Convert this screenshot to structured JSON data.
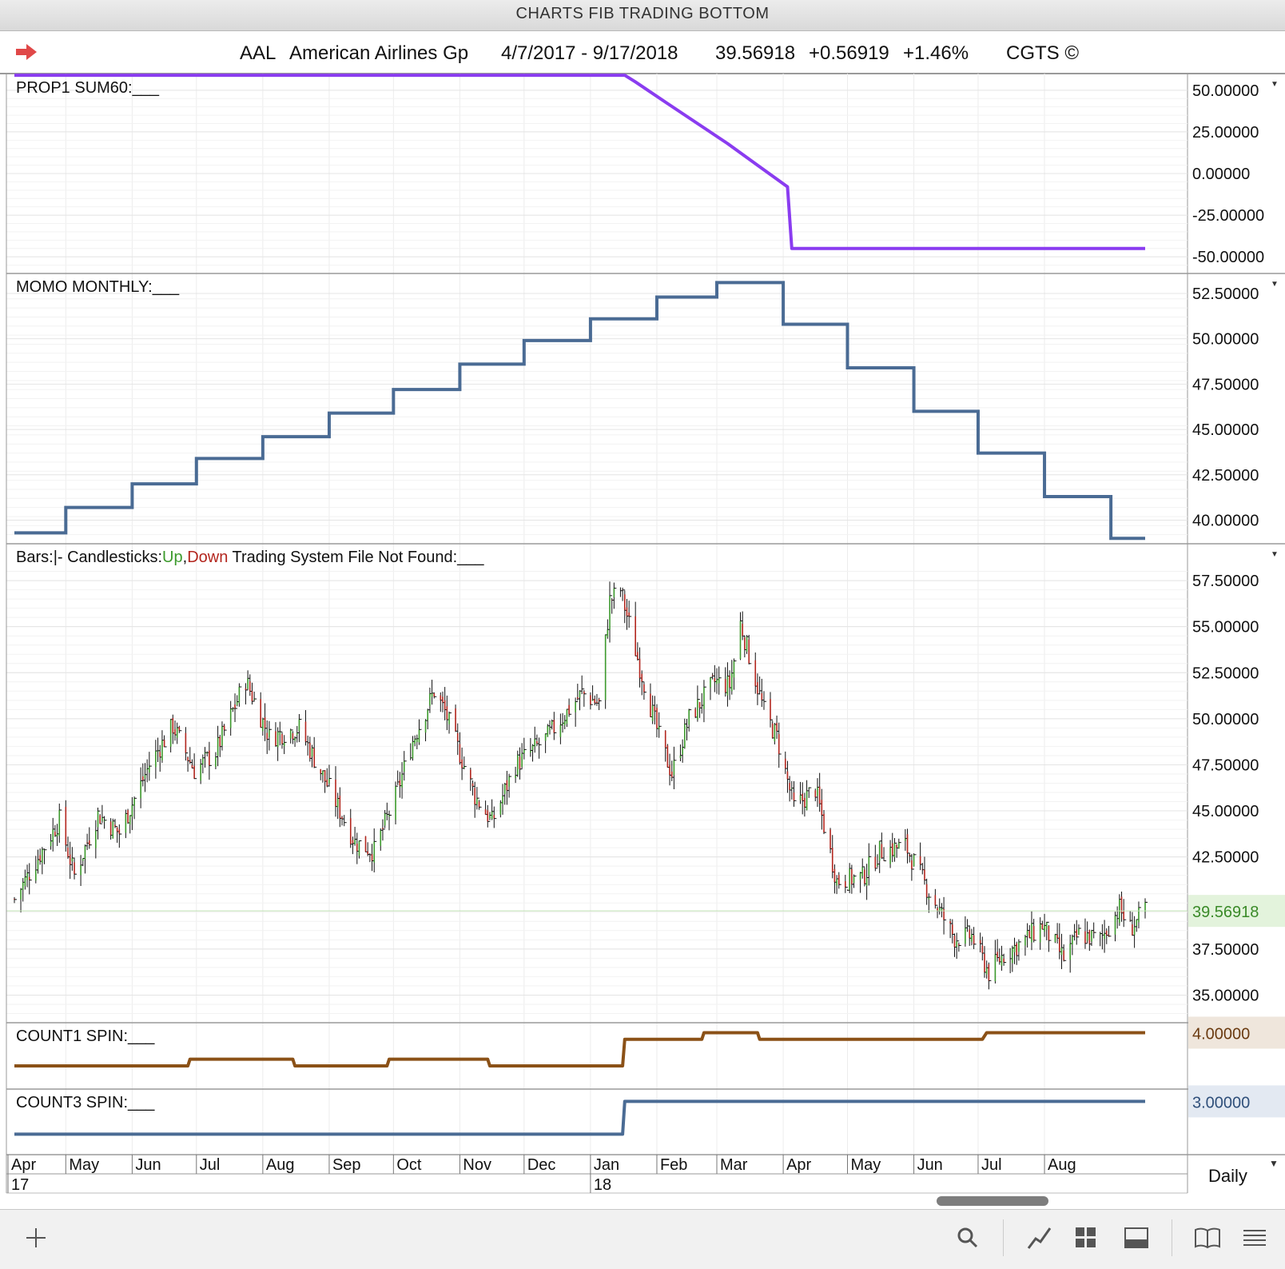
{
  "window": {
    "title": "CHARTS FIB TRADING BOTTOM"
  },
  "header": {
    "arrow_icon": "red-arrow-icon",
    "symbol": "AAL",
    "company": "American Airlines Gp",
    "date_range": "4/7/2017 - 9/17/2018",
    "last": "39.56918",
    "change": "+0.56919",
    "change_pct": "+1.46%",
    "brand": "CGTS ©"
  },
  "toolbar": {
    "add_icon": "plus-icon",
    "search_icon": "search-icon",
    "chart_icon": "chart-line-icon",
    "grid_icon": "grid-icon",
    "panel_icon": "panel-icon",
    "book_icon": "book-icon",
    "menu_icon": "menu-icon",
    "period": "Daily"
  },
  "colors": {
    "prop1": "#8a3cf0",
    "momo": "#4a6b94",
    "up": "#3c9a2c",
    "down": "#b3261e",
    "count1": "#8b5117",
    "count3": "#4a6b94",
    "last_price_badge": "#e3f3dc",
    "count1_badge": "#efe6dc",
    "count3_badge": "#e3e9f2"
  },
  "chart_data": [
    {
      "type": "line",
      "title": "PROP1 SUM60:___",
      "ylim": [
        -60,
        60
      ],
      "yticks": [
        "50.00000",
        "25.00000",
        "0.00000",
        "-25.00000",
        "-50.00000"
      ],
      "yticks_values": [
        50,
        25,
        0,
        -25,
        -50
      ],
      "series": [
        {
          "name": "PROP1 SUM60",
          "x": [
            "2017-04-07",
            "2018-01-17",
            "2018-01-22",
            "2018-02-06",
            "2018-02-20",
            "2018-03-06",
            "2018-03-20",
            "2018-04-03",
            "2018-04-05",
            "2018-09-17"
          ],
          "values": [
            59,
            59,
            55,
            42,
            30,
            18,
            5,
            -8,
            -45,
            -45
          ]
        }
      ]
    },
    {
      "type": "line",
      "title": "MOMO MONTHLY:___",
      "ylim": [
        38.7,
        53.6
      ],
      "yticks": [
        "52.50000",
        "50.00000",
        "47.50000",
        "45.00000",
        "42.50000",
        "40.00000"
      ],
      "yticks_values": [
        52.5,
        50,
        47.5,
        45,
        42.5,
        40
      ],
      "series": [
        {
          "name": "MOMO MONTHLY",
          "x": [
            "2017-04",
            "2017-05",
            "2017-06",
            "2017-07",
            "2017-08",
            "2017-09",
            "2017-10",
            "2017-11",
            "2017-12",
            "2018-01",
            "2018-02",
            "2018-03",
            "2018-04",
            "2018-05",
            "2018-06",
            "2018-07",
            "2018-08",
            "2018-09"
          ],
          "values": [
            39.3,
            40.7,
            42.0,
            43.4,
            44.6,
            45.9,
            47.2,
            48.6,
            49.9,
            51.1,
            52.3,
            53.1,
            50.8,
            48.4,
            46.0,
            43.7,
            41.3,
            39.0
          ]
        }
      ]
    },
    {
      "type": "bar",
      "title": "Bars:|-",
      "legend": {
        "bars_label": "Bars:",
        "bars_marker": "|-",
        "candles_label": "Candlesticks:",
        "up": "Up",
        "comma": ",",
        "down": "Down",
        "system": "Trading System File Not Found:___"
      },
      "ylim": [
        33.5,
        59.5
      ],
      "yticks": [
        "57.50000",
        "55.00000",
        "52.50000",
        "50.00000",
        "47.50000",
        "45.00000",
        "42.50000",
        "37.50000",
        "35.00000"
      ],
      "yticks_values": [
        57.5,
        55,
        52.5,
        50,
        47.5,
        45,
        42.5,
        37.5,
        35
      ],
      "last_price": 39.56918,
      "last_price_label": "39.56918",
      "path_x": [
        "2017-04-07",
        "2017-04-28",
        "2017-05-05",
        "2017-05-16",
        "2017-05-26",
        "2017-06-09",
        "2017-06-20",
        "2017-06-30",
        "2017-07-10",
        "2017-07-24",
        "2017-08-04",
        "2017-08-18",
        "2017-09-01",
        "2017-09-13",
        "2017-09-22",
        "2017-10-02",
        "2017-10-10",
        "2017-10-20",
        "2017-10-25",
        "2017-11-08",
        "2017-11-16",
        "2017-11-27",
        "2017-12-11",
        "2017-12-28",
        "2018-01-05",
        "2018-01-10",
        "2018-01-15",
        "2018-01-24",
        "2018-02-02",
        "2018-02-08",
        "2018-02-16",
        "2018-02-28",
        "2018-03-07",
        "2018-03-12",
        "2018-03-23",
        "2018-03-29",
        "2018-04-06",
        "2018-04-16",
        "2018-04-26",
        "2018-05-08",
        "2018-05-16",
        "2018-05-28",
        "2018-06-08",
        "2018-06-20",
        "2018-06-28",
        "2018-07-06",
        "2018-07-12",
        "2018-07-23",
        "2018-07-31",
        "2018-08-10",
        "2018-08-17",
        "2018-08-27",
        "2018-09-05",
        "2018-09-10",
        "2018-09-17"
      ],
      "path_y": [
        40.2,
        44.5,
        41.5,
        44.8,
        43.8,
        47.5,
        49.6,
        47.2,
        48.2,
        52.1,
        49.0,
        49.5,
        46.2,
        43.3,
        42.8,
        45.8,
        48.8,
        51.5,
        50.4,
        45.8,
        44.4,
        47.5,
        48.9,
        51.4,
        50.8,
        56.4,
        57.0,
        52.8,
        49.0,
        47.0,
        50.0,
        52.0,
        51.8,
        55.2,
        50.4,
        49.0,
        45.2,
        46.2,
        41.2,
        41.4,
        42.8,
        43.1,
        40.6,
        38.1,
        38.2,
        36.2,
        37.1,
        38.0,
        38.8,
        37.0,
        38.3,
        38.0,
        39.7,
        38.6,
        39.57
      ],
      "xlabels": [
        "Apr",
        "May",
        "Jun",
        "Jul",
        "Aug",
        "Sep",
        "Oct",
        "Nov",
        "Dec",
        "Jan",
        "Feb",
        "Mar",
        "Apr",
        "May",
        "Jun",
        "Jul",
        "Aug"
      ],
      "xlabels_dates": [
        "2017-04-01",
        "2017-05-01",
        "2017-06-01",
        "2017-07-01",
        "2017-08-01",
        "2017-09-01",
        "2017-10-01",
        "2017-11-01",
        "2017-12-01",
        "2018-01-01",
        "2018-02-01",
        "2018-03-01",
        "2018-04-01",
        "2018-05-01",
        "2018-06-01",
        "2018-07-01",
        "2018-08-01"
      ],
      "year_labels": [
        "17",
        "18"
      ],
      "year_labels_dates": [
        "2017-04-01",
        "2018-01-01"
      ]
    },
    {
      "type": "line",
      "title": "COUNT1 SPIN:___",
      "ylim": [
        0.6,
        4.6
      ],
      "series": [
        {
          "name": "COUNT1 SPIN",
          "x": [
            "2017-04-07",
            "2017-06-27",
            "2017-06-28",
            "2017-08-15",
            "2017-08-16",
            "2017-09-28",
            "2017-09-29",
            "2017-11-14",
            "2017-11-15",
            "2018-01-16",
            "2018-01-17",
            "2018-02-22",
            "2018-02-23",
            "2018-03-20",
            "2018-03-21",
            "2018-07-03",
            "2018-07-05",
            "2018-09-17"
          ],
          "values": [
            2,
            2,
            2.4,
            2.4,
            2,
            2,
            2.4,
            2.4,
            2,
            2,
            3.6,
            3.6,
            4,
            4,
            3.6,
            3.6,
            4,
            4
          ]
        }
      ],
      "last_value_label": "4.00000"
    },
    {
      "type": "line",
      "title": "COUNT3 SPIN:___",
      "ylim": [
        1.7,
        3.3
      ],
      "series": [
        {
          "name": "COUNT3 SPIN",
          "x": [
            "2017-04-07",
            "2018-01-16",
            "2018-01-17",
            "2018-09-17"
          ],
          "values": [
            2.2,
            2.2,
            3.0,
            3.0
          ]
        }
      ],
      "last_value_label": "3.00000"
    }
  ]
}
